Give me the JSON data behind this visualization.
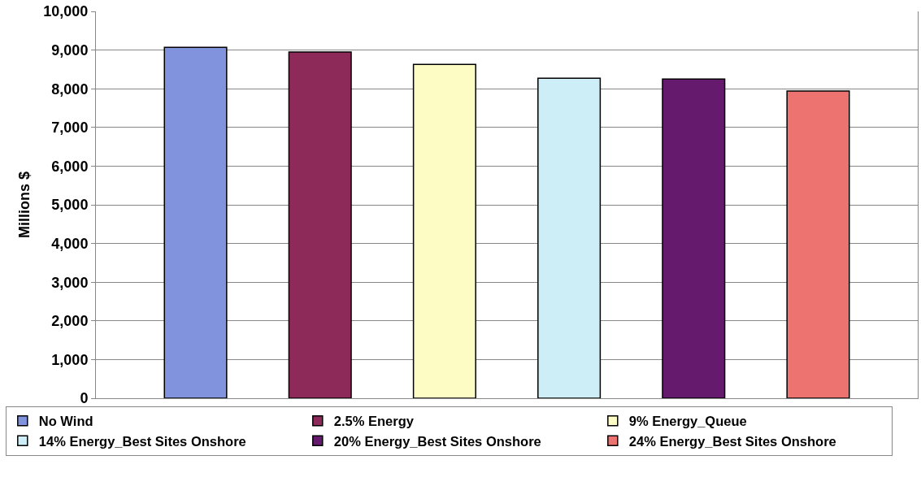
{
  "chart_data": {
    "type": "bar",
    "ylabel": "Millions $",
    "categories": [
      null,
      null,
      null,
      null,
      null,
      null
    ],
    "series": [
      {
        "name": "No Wind",
        "color": "#8093dc",
        "values": [
          9070,
          null,
          null,
          null,
          null,
          null
        ]
      },
      {
        "name": "2.5% Energy",
        "color": "#8e2a5a",
        "values": [
          null,
          8950,
          null,
          null,
          null,
          null
        ]
      },
      {
        "name": "9% Energy_Queue",
        "color": "#fdfcc4",
        "values": [
          null,
          null,
          8630,
          null,
          null,
          null
        ]
      },
      {
        "name": "14% Energy_Best Sites Onshore",
        "color": "#cdeef6",
        "values": [
          null,
          null,
          null,
          8270,
          null,
          null
        ]
      },
      {
        "name": "20% Energy_Best Sites Onshore",
        "color": "#661a6e",
        "values": [
          null,
          null,
          null,
          null,
          8250,
          null
        ]
      },
      {
        "name": "24% Energy_Best Sites Onshore",
        "color": "#ec7370",
        "values": [
          null,
          null,
          null,
          null,
          null,
          7940
        ]
      }
    ],
    "ylim": [
      0,
      10000
    ],
    "yticks": [
      {
        "value": 0,
        "label": "0"
      },
      {
        "value": 1000,
        "label": "1,000"
      },
      {
        "value": 2000,
        "label": "2,000"
      },
      {
        "value": 3000,
        "label": "3,000"
      },
      {
        "value": 4000,
        "label": "4,000"
      },
      {
        "value": 5000,
        "label": "5,000"
      },
      {
        "value": 6000,
        "label": "6,000"
      },
      {
        "value": 7000,
        "label": "7,000"
      },
      {
        "value": 8000,
        "label": "8,000"
      },
      {
        "value": 9000,
        "label": "9,000"
      },
      {
        "value": 10000,
        "label": "10,000"
      }
    ],
    "grid": "y",
    "legend": "bottom"
  }
}
